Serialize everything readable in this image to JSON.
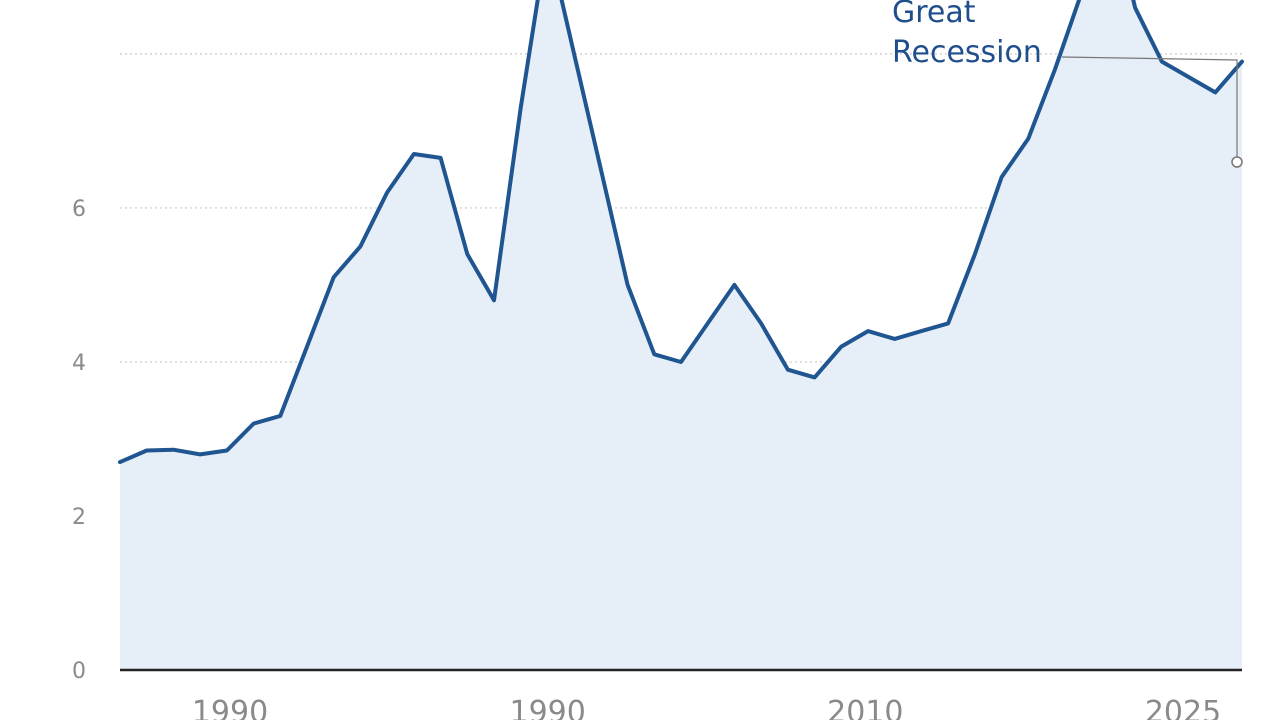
{
  "chart_data": {
    "type": "area",
    "title": "",
    "xlabel": "",
    "ylabel": "",
    "ylim": [
      0,
      8.7
    ],
    "grid": true,
    "y_ticks": [
      {
        "value": 0,
        "label": "0"
      },
      {
        "value": 2,
        "label": "2"
      },
      {
        "value": 4,
        "label": "4"
      },
      {
        "value": 6,
        "label": "6"
      }
    ],
    "x_ticks": [
      "1990",
      "1990",
      "2010",
      "2025"
    ],
    "series": [
      {
        "values": [
          2.7,
          2.85,
          2.86,
          2.8,
          2.85,
          3.2,
          3.3,
          4.2,
          5.1,
          5.5,
          6.2,
          6.7,
          6.65,
          5.4,
          4.8,
          7.3,
          9.5,
          8.0,
          6.5,
          5.0,
          4.1,
          4.0,
          4.5,
          5.0,
          4.5,
          3.9,
          3.8,
          4.2,
          4.4,
          4.3,
          4.4,
          4.5,
          5.4,
          6.4,
          6.9,
          7.8,
          8.8,
          10.1,
          8.6,
          7.9,
          7.7,
          7.5,
          7.9
        ],
        "color": "#1f5590",
        "fill": "#e6eef7"
      }
    ],
    "annotation": {
      "line1": "Great",
      "line2": "Recession"
    }
  }
}
